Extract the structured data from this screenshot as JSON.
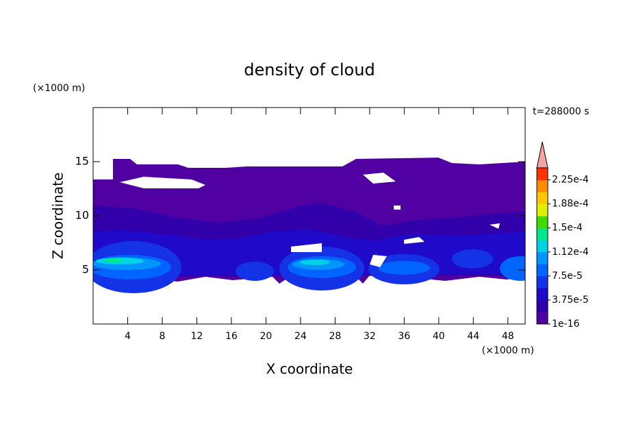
{
  "chart_data": {
    "type": "contour",
    "title": "density of cloud",
    "xlabel": "X coordinate",
    "ylabel": "Z coordinate",
    "xunit": "(×1000 m)",
    "yunit": "(×1000 m)",
    "annotation": "t=288000 s",
    "xlim": [
      0,
      50
    ],
    "ylim": [
      0,
      20
    ],
    "xticks": [
      4,
      8,
      12,
      16,
      20,
      24,
      28,
      32,
      36,
      40,
      44,
      48
    ],
    "yticks": [
      5,
      10,
      15
    ],
    "colorbar": {
      "clim": [
        0,
        0.00024375
      ],
      "colors": [
        "#5000a0",
        "#3200aa",
        "#1e0ac8",
        "#1432e6",
        "#0064ff",
        "#0096ff",
        "#00d2e6",
        "#00e68c",
        "#3cdc00",
        "#dcf000",
        "#ffc800",
        "#ff8c00",
        "#ff3200"
      ],
      "extend_color": "#f4a4a4",
      "ticks": [
        {
          "value": 1e-16,
          "label": "1e-16"
        },
        {
          "value": 3.75e-05,
          "label": "3.75e-5"
        },
        {
          "value": 7.5e-05,
          "label": "7.5e-5"
        },
        {
          "value": 0.0001125,
          "label": "1.12e-4"
        },
        {
          "value": 0.00015,
          "label": "1.5e-4"
        },
        {
          "value": 0.0001875,
          "label": "1.88e-4"
        },
        {
          "value": 0.000225,
          "label": "2.25e-4"
        }
      ]
    }
  }
}
